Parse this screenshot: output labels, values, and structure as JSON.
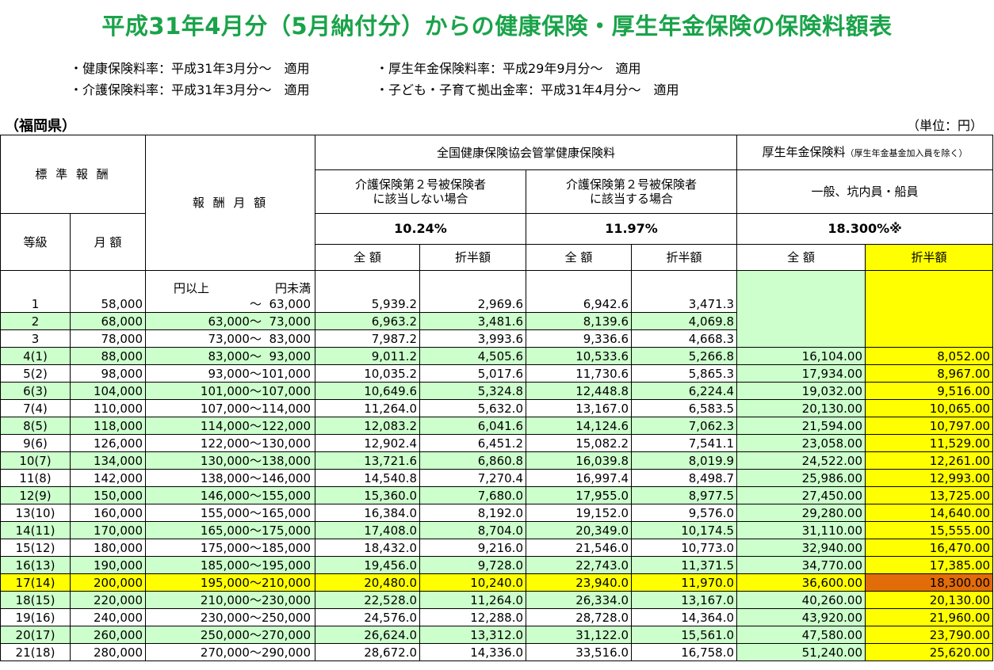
{
  "title": "平成31年4月分（5月納付分）からの健康保険・厚生年金保険の保険料額表",
  "notes": {
    "n1": "・健康保険料率：平成31年3月分～　適用",
    "n2": "・厚生年金保険料率：平成29年9月分～　適用",
    "n3": "・介護保険料率：平成31年3月分～　適用",
    "n4": "・子ども・子育て拠出金率：平成31年4月分～　適用"
  },
  "prefecture": "（福岡県）",
  "unit": "（単位：円）",
  "header": {
    "standard": "標 準 報 酬",
    "monthly_pay": "報 酬 月 額",
    "health": "全国健康保険協会管掌健康保険料",
    "pension": "厚生年金保険料",
    "pension_note": "（厚生年金基金加入員を除く）",
    "no_care": "介護保険第２号被保険者\nに該当しない場合",
    "with_care": "介護保険第２号被保険者\nに該当する場合",
    "pension_general": "一般、坑内員・船員",
    "grade": "等級",
    "amount": "月 額",
    "rate1": "10.24%",
    "rate2": "11.97%",
    "rate3": "18.300%※",
    "full": "全 額",
    "half": "折半額",
    "full2": "全 額",
    "half2": "折半額",
    "full3": "全 額",
    "half3": "折半額",
    "yen_over": "円以上",
    "yen_under": "円未満"
  },
  "rows": [
    {
      "grade": "1",
      "amount": "58,000",
      "lo": "",
      "hi": "63,000",
      "a": "5,939.2",
      "b": "2,969.6",
      "c": "6,942.6",
      "d": "3,471.3",
      "e": "",
      "f": ""
    },
    {
      "grade": "2",
      "amount": "68,000",
      "lo": "63,000",
      "hi": "73,000",
      "a": "6,963.2",
      "b": "3,481.6",
      "c": "8,139.6",
      "d": "4,069.8",
      "e": "",
      "f": ""
    },
    {
      "grade": "3",
      "amount": "78,000",
      "lo": "73,000",
      "hi": "83,000",
      "a": "7,987.2",
      "b": "3,993.6",
      "c": "9,336.6",
      "d": "4,668.3",
      "e": "",
      "f": ""
    },
    {
      "grade": "4(1)",
      "amount": "88,000",
      "lo": "83,000",
      "hi": "93,000",
      "a": "9,011.2",
      "b": "4,505.6",
      "c": "10,533.6",
      "d": "5,266.8",
      "e": "16,104.00",
      "f": "8,052.00"
    },
    {
      "grade": "5(2)",
      "amount": "98,000",
      "lo": "93,000",
      "hi": "101,000",
      "a": "10,035.2",
      "b": "5,017.6",
      "c": "11,730.6",
      "d": "5,865.3",
      "e": "17,934.00",
      "f": "8,967.00"
    },
    {
      "grade": "6(3)",
      "amount": "104,000",
      "lo": "101,000",
      "hi": "107,000",
      "a": "10,649.6",
      "b": "5,324.8",
      "c": "12,448.8",
      "d": "6,224.4",
      "e": "19,032.00",
      "f": "9,516.00"
    },
    {
      "grade": "7(4)",
      "amount": "110,000",
      "lo": "107,000",
      "hi": "114,000",
      "a": "11,264.0",
      "b": "5,632.0",
      "c": "13,167.0",
      "d": "6,583.5",
      "e": "20,130.00",
      "f": "10,065.00"
    },
    {
      "grade": "8(5)",
      "amount": "118,000",
      "lo": "114,000",
      "hi": "122,000",
      "a": "12,083.2",
      "b": "6,041.6",
      "c": "14,124.6",
      "d": "7,062.3",
      "e": "21,594.00",
      "f": "10,797.00"
    },
    {
      "grade": "9(6)",
      "amount": "126,000",
      "lo": "122,000",
      "hi": "130,000",
      "a": "12,902.4",
      "b": "6,451.2",
      "c": "15,082.2",
      "d": "7,541.1",
      "e": "23,058.00",
      "f": "11,529.00"
    },
    {
      "grade": "10(7)",
      "amount": "134,000",
      "lo": "130,000",
      "hi": "138,000",
      "a": "13,721.6",
      "b": "6,860.8",
      "c": "16,039.8",
      "d": "8,019.9",
      "e": "24,522.00",
      "f": "12,261.00"
    },
    {
      "grade": "11(8)",
      "amount": "142,000",
      "lo": "138,000",
      "hi": "146,000",
      "a": "14,540.8",
      "b": "7,270.4",
      "c": "16,997.4",
      "d": "8,498.7",
      "e": "25,986.00",
      "f": "12,993.00"
    },
    {
      "grade": "12(9)",
      "amount": "150,000",
      "lo": "146,000",
      "hi": "155,000",
      "a": "15,360.0",
      "b": "7,680.0",
      "c": "17,955.0",
      "d": "8,977.5",
      "e": "27,450.00",
      "f": "13,725.00"
    },
    {
      "grade": "13(10)",
      "amount": "160,000",
      "lo": "155,000",
      "hi": "165,000",
      "a": "16,384.0",
      "b": "8,192.0",
      "c": "19,152.0",
      "d": "9,576.0",
      "e": "29,280.00",
      "f": "14,640.00"
    },
    {
      "grade": "14(11)",
      "amount": "170,000",
      "lo": "165,000",
      "hi": "175,000",
      "a": "17,408.0",
      "b": "8,704.0",
      "c": "20,349.0",
      "d": "10,174.5",
      "e": "31,110.00",
      "f": "15,555.00"
    },
    {
      "grade": "15(12)",
      "amount": "180,000",
      "lo": "175,000",
      "hi": "185,000",
      "a": "18,432.0",
      "b": "9,216.0",
      "c": "21,546.0",
      "d": "10,773.0",
      "e": "32,940.00",
      "f": "16,470.00"
    },
    {
      "grade": "16(13)",
      "amount": "190,000",
      "lo": "185,000",
      "hi": "195,000",
      "a": "19,456.0",
      "b": "9,728.0",
      "c": "22,743.0",
      "d": "11,371.5",
      "e": "34,770.00",
      "f": "17,385.00"
    },
    {
      "grade": "17(14)",
      "amount": "200,000",
      "lo": "195,000",
      "hi": "210,000",
      "a": "20,480.0",
      "b": "10,240.0",
      "c": "23,940.0",
      "d": "11,970.0",
      "e": "36,600.00",
      "f": "18,300.00"
    },
    {
      "grade": "18(15)",
      "amount": "220,000",
      "lo": "210,000",
      "hi": "230,000",
      "a": "22,528.0",
      "b": "11,264.0",
      "c": "26,334.0",
      "d": "13,167.0",
      "e": "40,260.00",
      "f": "20,130.00"
    },
    {
      "grade": "19(16)",
      "amount": "240,000",
      "lo": "230,000",
      "hi": "250,000",
      "a": "24,576.0",
      "b": "12,288.0",
      "c": "28,728.0",
      "d": "14,364.0",
      "e": "43,920.00",
      "f": "21,960.00"
    },
    {
      "grade": "20(17)",
      "amount": "260,000",
      "lo": "250,000",
      "hi": "270,000",
      "a": "26,624.0",
      "b": "13,312.0",
      "c": "31,122.0",
      "d": "15,561.0",
      "e": "47,580.00",
      "f": "23,790.00"
    },
    {
      "grade": "21(18)",
      "amount": "280,000",
      "lo": "270,000",
      "hi": "290,000",
      "a": "28,672.0",
      "b": "14,336.0",
      "c": "33,516.0",
      "d": "16,758.0",
      "e": "51,240.00",
      "f": "25,620.00"
    }
  ],
  "tilde": "～",
  "colors": {
    "title": "#1aa34a",
    "green_row": "#ccffcc",
    "yellow": "#ffff00",
    "highlight": "#e26b0a"
  }
}
